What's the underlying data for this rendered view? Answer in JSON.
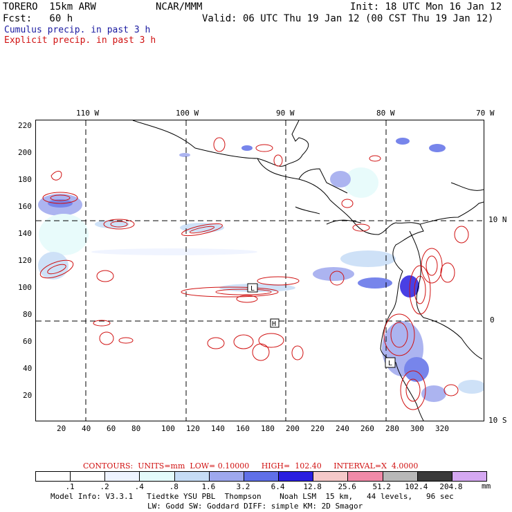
{
  "header": {
    "model": "TORERO  15km ARW",
    "org": "NCAR/MMM",
    "init": "Init: 18 UTC Mon 16 Jan 12",
    "fcst": "Fcst:   60 h",
    "valid": "Valid: 06 UTC Thu 19 Jan 12 (00 CST Thu 19 Jan 12)",
    "cumulus": "Cumulus precip. in past 3 h",
    "explicit": "Explicit precip. in past 3 h"
  },
  "axes": {
    "top_lon": [
      "110 W",
      "100 W",
      "90 W",
      "80 W",
      "70 W"
    ],
    "right_lat": [
      "10 N",
      "0",
      "10 S"
    ],
    "left_grid": [
      "220",
      "200",
      "180",
      "160",
      "140",
      "120",
      "100",
      "80",
      "60",
      "40",
      "20"
    ],
    "bottom_grid": [
      "20",
      "40",
      "60",
      "80",
      "100",
      "120",
      "140",
      "160",
      "180",
      "200",
      "220",
      "240",
      "260",
      "280",
      "300",
      "320"
    ]
  },
  "markers": [
    "L",
    "H",
    "L"
  ],
  "contours": {
    "text": "CONTOURS:  UNITS=mm  LOW= 0.10000     HIGH=  102.40     INTERVAL=X  4.0000"
  },
  "colorbar": {
    "labels": [
      ".1",
      ".2",
      ".4",
      ".8",
      "1.6",
      "3.2",
      "6.4",
      "12.8",
      "25.6",
      "51.2",
      "102.4",
      "204.8"
    ],
    "unit": "mm",
    "colors": [
      "#ffffff",
      "#ffffff",
      "#eef3ff",
      "#e4fbfb",
      "#c6dcf6",
      "#9ea8ee",
      "#6070e8",
      "#2a1ee0",
      "#f6c9c9",
      "#f08aa8",
      "#b8b8b8",
      "#3a3a3a",
      "#d5a8f2"
    ]
  },
  "footer": {
    "line1": "Model Info: V3.3.1   Tiedtke YSU PBL  Thompson    Noah LSM  15 km,   44 levels,   96 sec",
    "line2": "LW: Godd SW: Goddard DIFF: simple KM: 2D Smagor"
  }
}
